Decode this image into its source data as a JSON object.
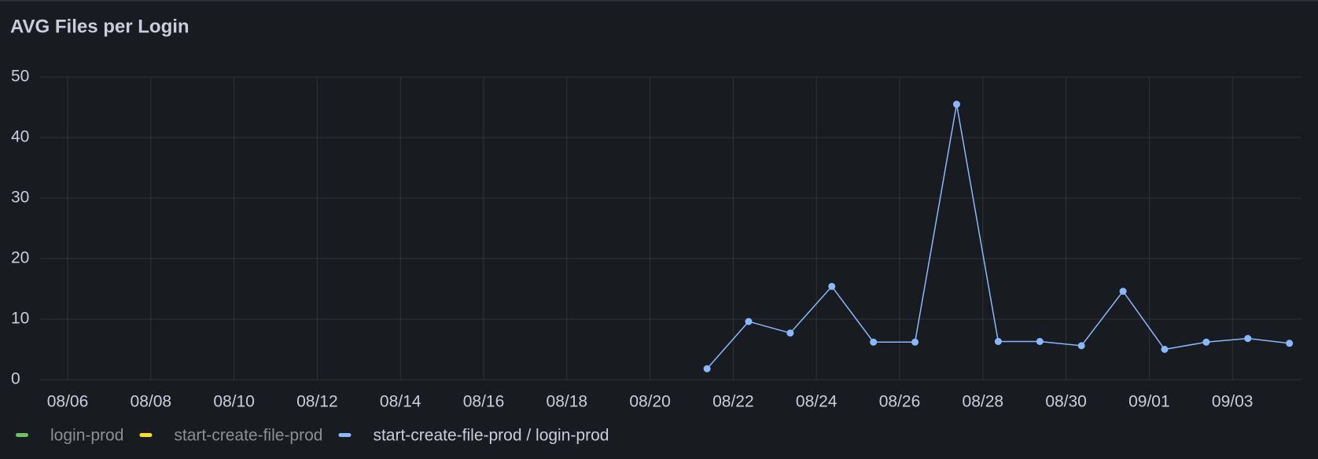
{
  "chart_data": {
    "type": "line",
    "title": "AVG Files per Login",
    "x": [
      "08/21",
      "08/22",
      "08/23",
      "08/24",
      "08/25",
      "08/26",
      "08/27",
      "08/28",
      "08/29",
      "08/30",
      "08/31",
      "09/01",
      "09/02",
      "09/03",
      "09/04"
    ],
    "series": [
      {
        "name": "login-prod",
        "color": "#73bf69",
        "hidden": true,
        "values": [
          null,
          null,
          null,
          null,
          null,
          null,
          null,
          null,
          null,
          null,
          null,
          null,
          null,
          null,
          null
        ]
      },
      {
        "name": "start-create-file-prod",
        "color": "#fade2a",
        "hidden": true,
        "values": [
          null,
          null,
          null,
          null,
          null,
          null,
          null,
          null,
          null,
          null,
          null,
          null,
          null,
          null,
          null
        ]
      },
      {
        "name": "start-create-file-prod / login-prod",
        "color": "#8ab8ff",
        "hidden": false,
        "values": [
          1.8,
          9.6,
          7.7,
          15.4,
          6.2,
          6.2,
          45.5,
          6.3,
          6.3,
          5.6,
          14.6,
          5.0,
          6.2,
          6.8,
          6.0
        ]
      }
    ],
    "ylim": [
      0,
      50
    ],
    "yticks": [
      0,
      10,
      20,
      30,
      40,
      50
    ],
    "xticks": [
      "08/06",
      "08/08",
      "08/10",
      "08/12",
      "08/14",
      "08/16",
      "08/18",
      "08/20",
      "08/22",
      "08/24",
      "08/26",
      "08/28",
      "08/30",
      "09/01",
      "09/03"
    ],
    "grid": true,
    "legend": "bottom"
  }
}
